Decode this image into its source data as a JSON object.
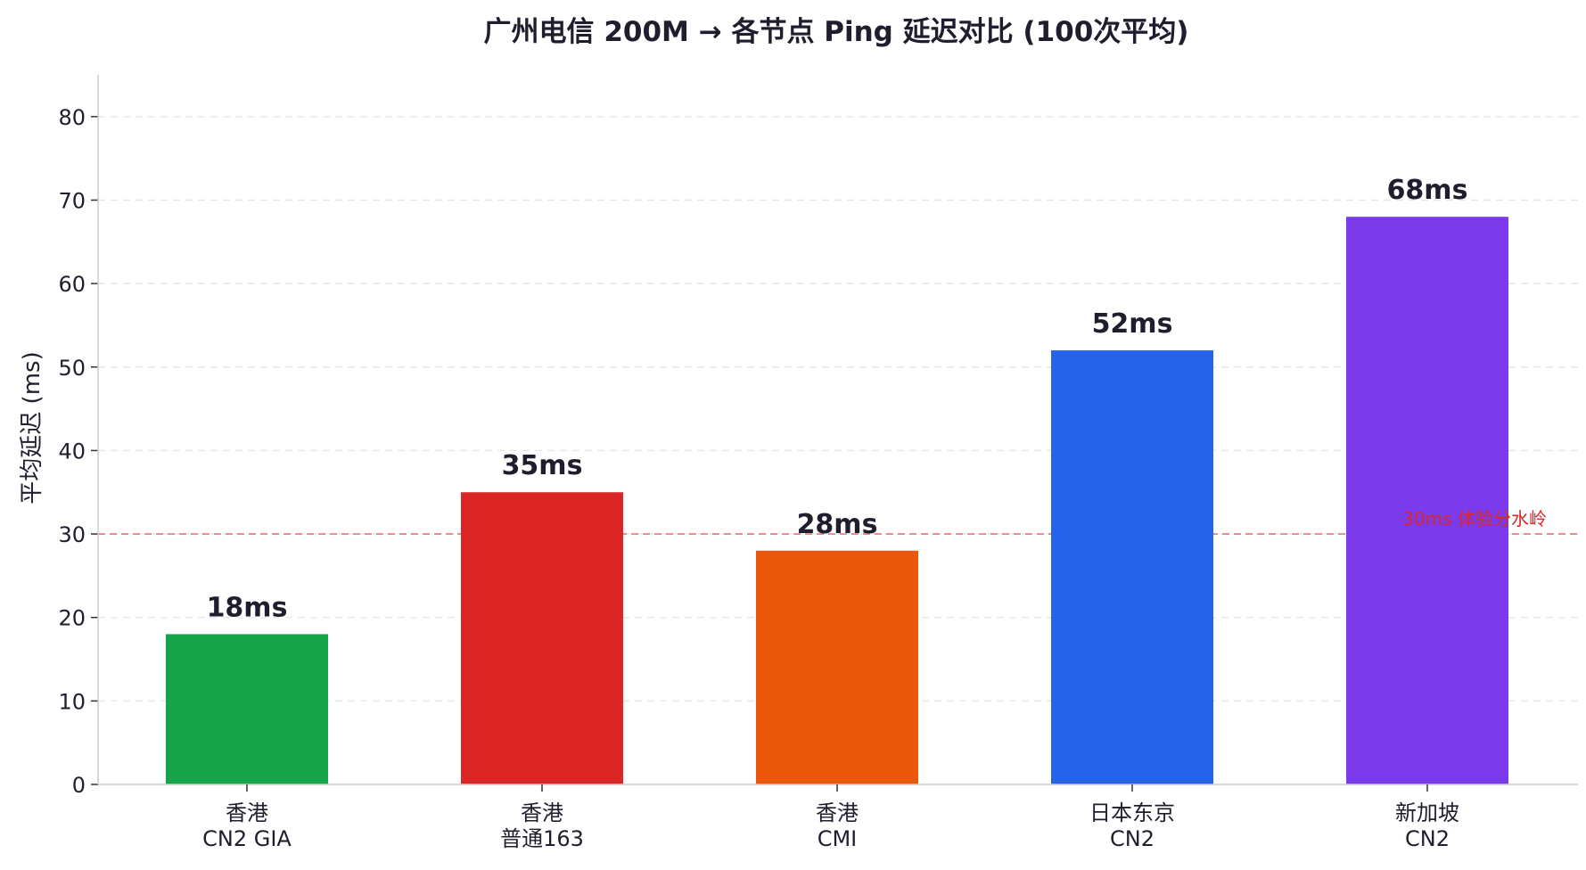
{
  "chart_data": {
    "type": "bar",
    "title": "广州电信 200M → 各节点 Ping 延迟对比 (100次平均)",
    "ylabel": "平均延迟 (ms)",
    "xlabel": "",
    "ylim": [
      0,
      85
    ],
    "yticks": [
      0,
      10,
      20,
      30,
      40,
      50,
      60,
      70,
      80
    ],
    "grid": true,
    "categories": [
      [
        "香港",
        "CN2 GIA"
      ],
      [
        "香港",
        "普通163"
      ],
      [
        "香港",
        "CMI"
      ],
      [
        "日本东京",
        "CN2"
      ],
      [
        "新加坡",
        "CN2"
      ]
    ],
    "values": [
      18,
      35,
      28,
      52,
      68
    ],
    "value_labels": [
      "18ms",
      "35ms",
      "28ms",
      "52ms",
      "68ms"
    ],
    "colors": [
      "#16a34a",
      "#dc2626",
      "#ea580c",
      "#2563eb",
      "#7c3aed"
    ],
    "reference_line": {
      "value": 30,
      "label": "30ms 体验分水岭",
      "color": "#e06666"
    }
  }
}
